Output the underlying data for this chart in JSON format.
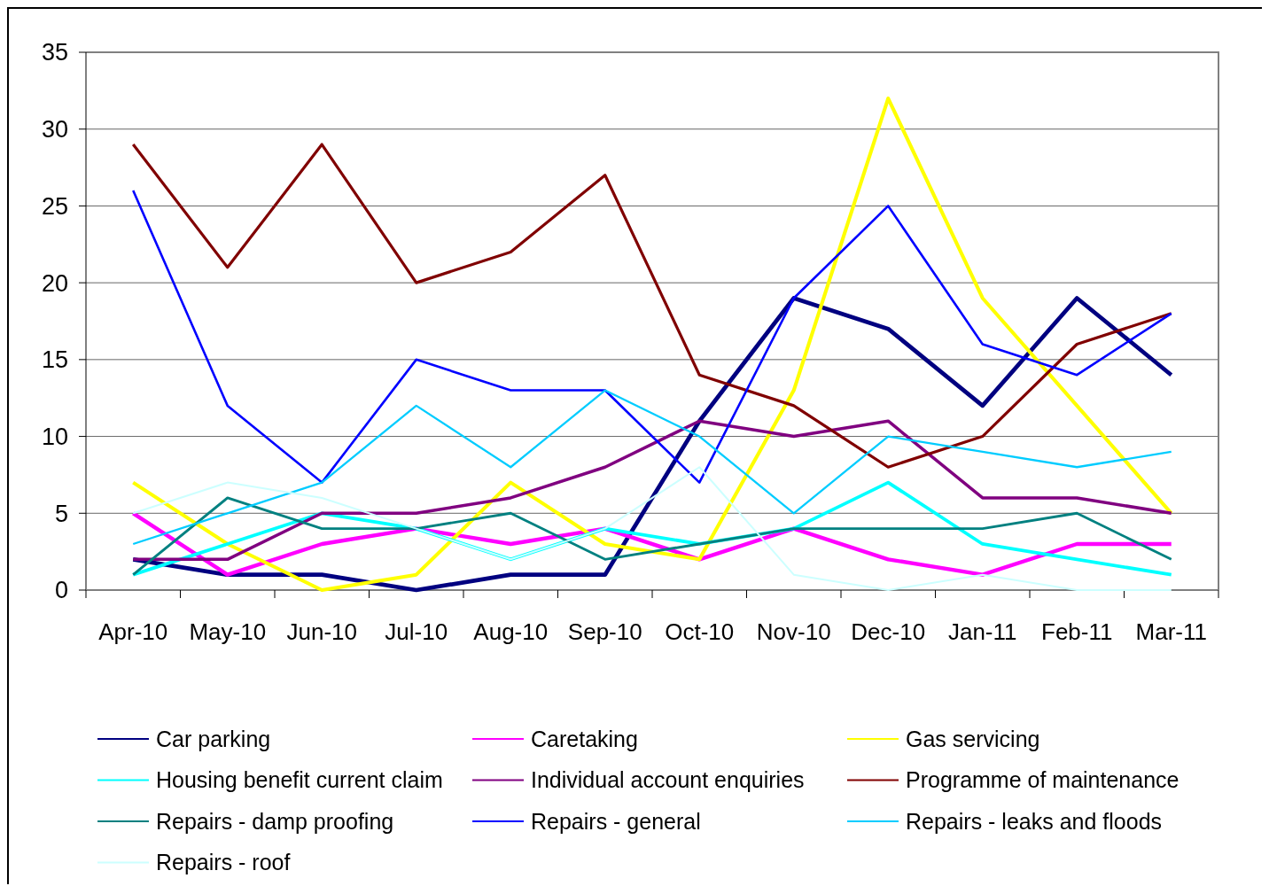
{
  "chart_data": {
    "type": "line",
    "categories": [
      "Apr-10",
      "May-10",
      "Jun-10",
      "Jul-10",
      "Aug-10",
      "Sep-10",
      "Oct-10",
      "Nov-10",
      "Dec-10",
      "Jan-11",
      "Feb-11",
      "Mar-11"
    ],
    "series": [
      {
        "name": "Car parking",
        "color": "#000080",
        "values": [
          2,
          1,
          1,
          0,
          1,
          1,
          11,
          19,
          17,
          12,
          19,
          14
        ]
      },
      {
        "name": "Caretaking",
        "color": "#ff00ff",
        "values": [
          5,
          1,
          3,
          4,
          3,
          4,
          2,
          4,
          2,
          1,
          3,
          3
        ]
      },
      {
        "name": "Gas servicing",
        "color": "#ffff00",
        "values": [
          7,
          3,
          0,
          1,
          7,
          3,
          2,
          13,
          32,
          19,
          12,
          5
        ]
      },
      {
        "name": "Housing benefit current claim",
        "color": "#00ffff",
        "values": [
          1,
          3,
          5,
          4,
          2,
          4,
          3,
          4,
          7,
          3,
          2,
          1
        ]
      },
      {
        "name": "Individual account enquiries",
        "color": "#800080",
        "values": [
          2,
          2,
          5,
          5,
          6,
          8,
          11,
          10,
          11,
          6,
          6,
          5
        ]
      },
      {
        "name": "Programme of maintenance",
        "color": "#800000",
        "values": [
          29,
          21,
          29,
          20,
          22,
          27,
          14,
          12,
          8,
          10,
          16,
          18
        ]
      },
      {
        "name": "Repairs - damp proofing",
        "color": "#008080",
        "values": [
          1,
          6,
          4,
          4,
          5,
          2,
          3,
          4,
          4,
          4,
          5,
          2
        ]
      },
      {
        "name": "Repairs - general",
        "color": "#0000ff",
        "values": [
          26,
          12,
          7,
          15,
          13,
          13,
          7,
          19,
          25,
          16,
          14,
          18
        ]
      },
      {
        "name": "Repairs - leaks and floods",
        "color": "#00ccff",
        "values": [
          3,
          5,
          7,
          12,
          8,
          13,
          10,
          5,
          10,
          9,
          8,
          9
        ]
      },
      {
        "name": "Repairs - roof",
        "color": "#ccffff",
        "values": [
          5,
          7,
          6,
          4,
          2,
          4,
          8,
          1,
          0,
          1,
          0,
          0
        ]
      }
    ],
    "ylim": [
      0,
      35
    ],
    "yticks": [
      0,
      5,
      10,
      15,
      20,
      25,
      30,
      35
    ],
    "grid": "y",
    "legend": "bottom",
    "marker": "none",
    "line_style": "solid"
  }
}
